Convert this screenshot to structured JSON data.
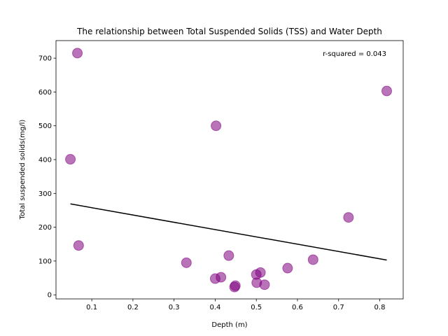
{
  "chart_data": {
    "type": "scatter",
    "title": "The relationship between Total Suspended Solids (TSS) and Water Depth",
    "xlabel": "Depth (m)",
    "ylabel": "Total suspended solids(mg/l)",
    "xlim": [
      0.013,
      0.857
    ],
    "ylim": [
      -12,
      752
    ],
    "xticks": [
      0.1,
      0.2,
      0.3,
      0.4,
      0.5,
      0.6,
      0.7,
      0.8
    ],
    "xtick_labels": [
      "0.1",
      "0.2",
      "0.3",
      "0.4",
      "0.5",
      "0.6",
      "0.7",
      "0.8"
    ],
    "yticks": [
      0,
      100,
      200,
      300,
      400,
      500,
      600,
      700
    ],
    "ytick_labels": [
      "0",
      "100",
      "200",
      "300",
      "400",
      "500",
      "600",
      "700"
    ],
    "annotation": "r-squared = 0.043",
    "grid": false,
    "legend": "none",
    "series": [
      {
        "marker_color": "#800080",
        "points": [
          {
            "x": 0.065,
            "y": 715
          },
          {
            "x": 0.048,
            "y": 401
          },
          {
            "x": 0.068,
            "y": 146
          },
          {
            "x": 0.402,
            "y": 500
          },
          {
            "x": 0.817,
            "y": 603
          },
          {
            "x": 0.724,
            "y": 229
          },
          {
            "x": 0.33,
            "y": 95
          },
          {
            "x": 0.433,
            "y": 116
          },
          {
            "x": 0.4,
            "y": 48
          },
          {
            "x": 0.414,
            "y": 52
          },
          {
            "x": 0.447,
            "y": 23
          },
          {
            "x": 0.449,
            "y": 27
          },
          {
            "x": 0.5,
            "y": 60
          },
          {
            "x": 0.51,
            "y": 66
          },
          {
            "x": 0.501,
            "y": 36
          },
          {
            "x": 0.52,
            "y": 30
          },
          {
            "x": 0.576,
            "y": 79
          },
          {
            "x": 0.638,
            "y": 104
          }
        ]
      }
    ],
    "trendline": {
      "color": "#000000",
      "points": [
        {
          "x": 0.048,
          "y": 269
        },
        {
          "x": 0.817,
          "y": 103
        }
      ]
    }
  }
}
